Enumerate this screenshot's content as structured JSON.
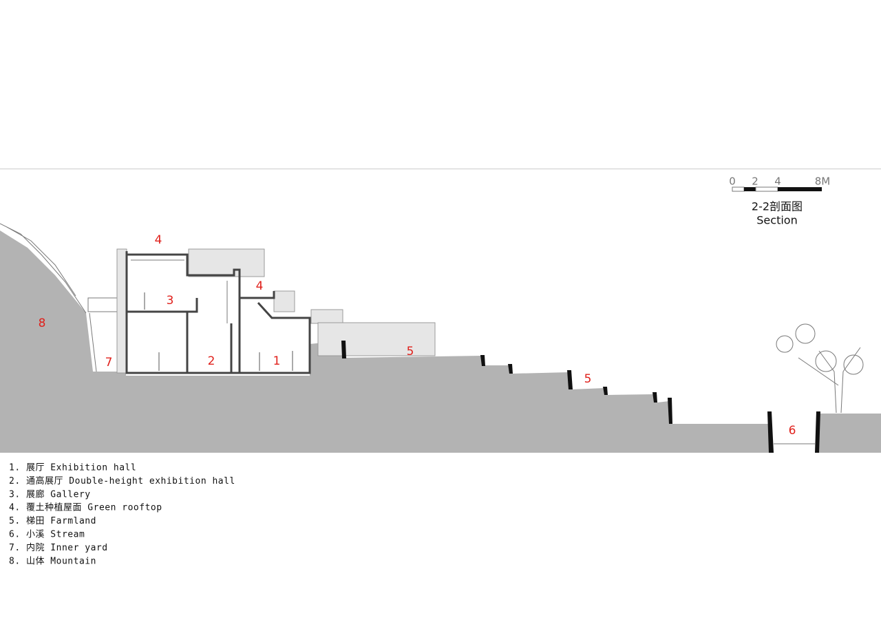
{
  "scale_bar": {
    "labels": [
      "0",
      "2",
      "4",
      "8M"
    ]
  },
  "title": "2-2剖面图",
  "subtitle": "Section",
  "drawing_labels": [
    "4",
    "4",
    "3",
    "2",
    "1",
    "5",
    "5",
    "6",
    "7",
    "8"
  ],
  "legend": [
    "1. 展厅 Exhibition hall",
    "2. 通高展厅 Double-height exhibition hall",
    "3. 展廊 Gallery",
    "4. 覆土种植屋面 Green rooftop",
    "5. 梯田 Farmland",
    "6. 小溪 Stream",
    "7. 内院 Inner yard",
    "8. 山体 Mountain"
  ]
}
